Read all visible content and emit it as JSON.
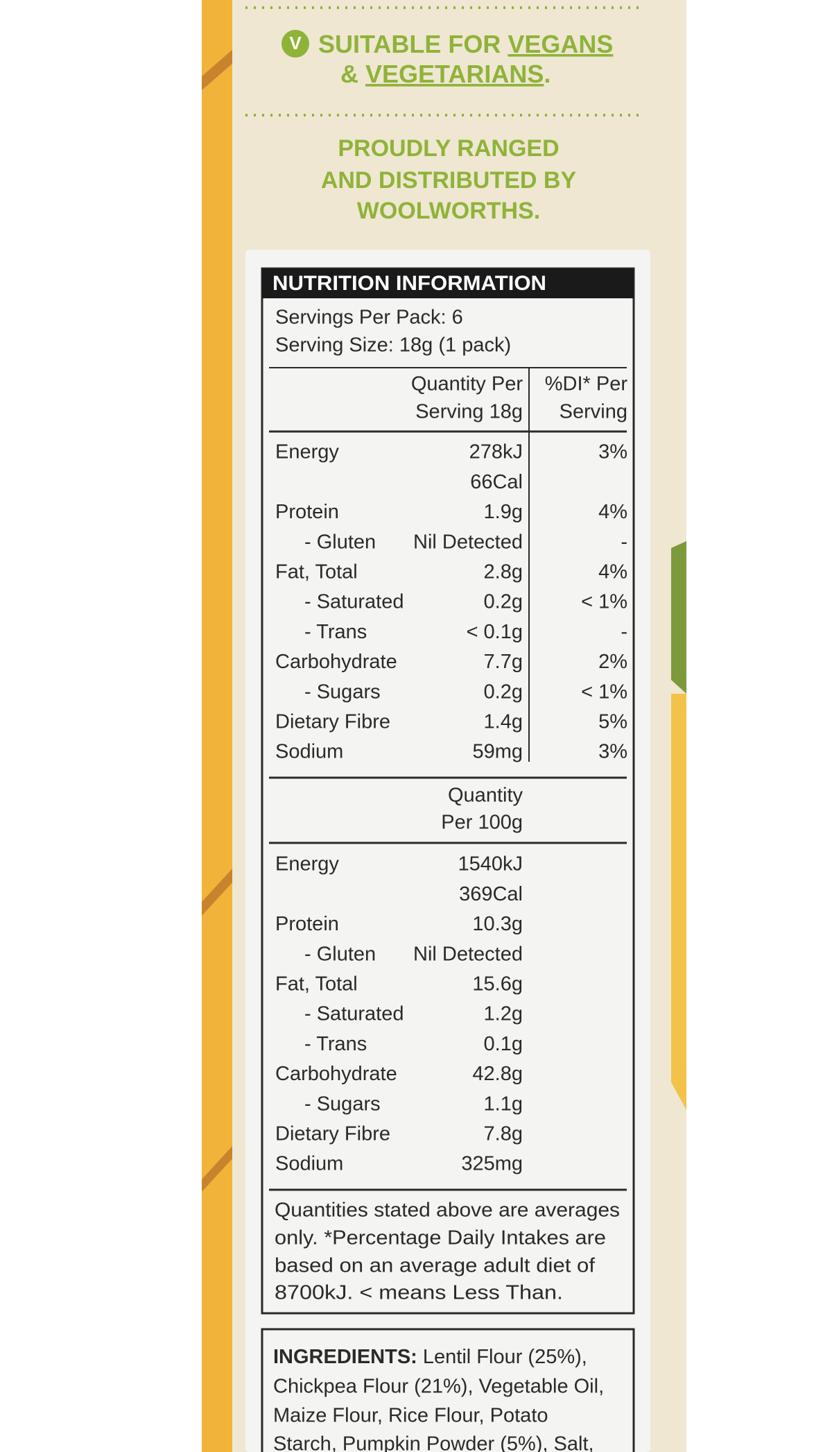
{
  "claims": {
    "badge": "V",
    "line1": [
      "SUITABLE FOR ",
      "VEGANS"
    ],
    "line2": [
      "& ",
      "VEGETARIANS",
      "."
    ]
  },
  "ranged": [
    "PROUDLY RANGED",
    "AND DISTRIBUTED BY",
    "WOOLWORTHS."
  ],
  "nutrition": {
    "title": "NUTRITION INFORMATION",
    "servings": [
      "Servings Per Pack: 6",
      "Serving Size: 18g (1 pack)"
    ],
    "serving_header": {
      "qty": [
        "Quantity Per",
        "Serving 18g"
      ],
      "di": [
        "%DI* Per",
        "Serving"
      ]
    },
    "serving_rows": [
      {
        "name": "Energy",
        "qty": [
          "278kJ",
          "66Cal"
        ],
        "di": "3%"
      },
      {
        "name": "Protein",
        "qty": [
          "1.9g"
        ],
        "di": "4%"
      },
      {
        "name": "- Gluten",
        "qty": [
          "Nil Detected"
        ],
        "di": "-"
      },
      {
        "name": "Fat,  Total",
        "qty": [
          "2.8g"
        ],
        "di": "4%"
      },
      {
        "name": "- Saturated",
        "qty": [
          "0.2g"
        ],
        "di": "< 1%"
      },
      {
        "name": "- Trans",
        "qty": [
          "< 0.1g"
        ],
        "di": "-"
      },
      {
        "name": "Carbohydrate",
        "qty": [
          "7.7g"
        ],
        "di": "2%"
      },
      {
        "name": "- Sugars",
        "qty": [
          "0.2g"
        ],
        "di": "< 1%"
      },
      {
        "name": "Dietary Fibre",
        "qty": [
          "1.4g"
        ],
        "di": "5%"
      },
      {
        "name": "Sodium",
        "qty": [
          "59mg"
        ],
        "di": "3%"
      }
    ],
    "per100_header": [
      "Quantity",
      "Per 100g"
    ],
    "per100_rows": [
      {
        "name": "Energy",
        "qty": [
          "1540kJ",
          "369Cal"
        ]
      },
      {
        "name": "Protein",
        "qty": [
          "10.3g"
        ]
      },
      {
        "name": "- Gluten",
        "qty": [
          "Nil Detected"
        ]
      },
      {
        "name": "Fat,  Total",
        "qty": [
          "15.6g"
        ]
      },
      {
        "name": "- Saturated",
        "qty": [
          "1.2g"
        ]
      },
      {
        "name": "- Trans",
        "qty": [
          "0.1g"
        ]
      },
      {
        "name": "Carbohydrate",
        "qty": [
          "42.8g"
        ]
      },
      {
        "name": "- Sugars",
        "qty": [
          "1.1g"
        ]
      },
      {
        "name": "Dietary Fibre",
        "qty": [
          "7.8g"
        ]
      },
      {
        "name": "Sodium",
        "qty": [
          "325mg"
        ]
      }
    ],
    "footnote": [
      "Quantities stated above are averages",
      "only. *Percentage Daily Intakes are",
      "based on an average adult diet of",
      "8700kJ. < means Less Than."
    ]
  },
  "ingredients": {
    "label": "INGREDIENTS:",
    "lines": [
      " Lentil Flour (25%),",
      "Chickpea Flour (21%), Vegetable Oil,",
      "Maize Flour, Rice Flour, Potato",
      "Starch, Pumpkin Powder (5%), Salt,"
    ]
  }
}
